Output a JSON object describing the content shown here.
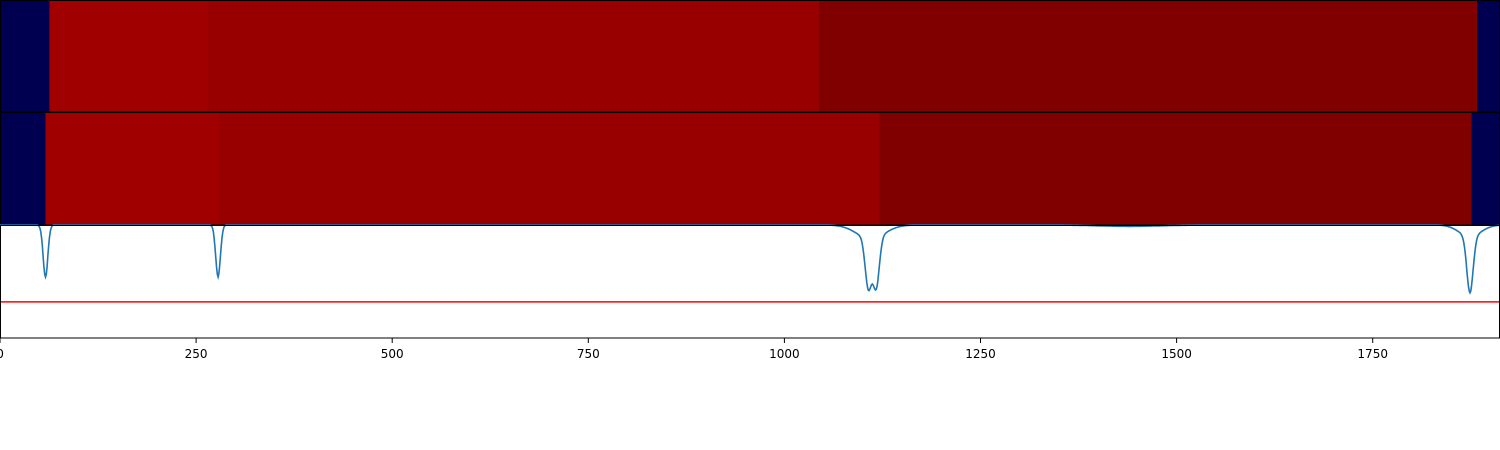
{
  "chart_data": {
    "type": "heatmap",
    "xlim": [
      0,
      1911
    ],
    "xticks": [
      0,
      250,
      500,
      750,
      1000,
      1250,
      1500,
      1750
    ],
    "xtick_labels": [
      "0",
      "250",
      "500",
      "750",
      "1000",
      "1250",
      "1500",
      "1750"
    ],
    "grid": false,
    "legend": "none",
    "segment_rows": [
      {
        "segments": [
          {
            "start": 0,
            "end": 63,
            "color": "#000050"
          },
          {
            "start": 63,
            "end": 265,
            "color": "#a00000"
          },
          {
            "start": 265,
            "end": 1044,
            "color": "#980000"
          },
          {
            "start": 1044,
            "end": 1883,
            "color": "#800000"
          },
          {
            "start": 1883,
            "end": 1911,
            "color": "#000050"
          }
        ]
      },
      {
        "segments": [
          {
            "start": 0,
            "end": 58,
            "color": "#000050"
          },
          {
            "start": 58,
            "end": 279,
            "color": "#a00000"
          },
          {
            "start": 279,
            "end": 1121,
            "color": "#980000"
          },
          {
            "start": 1121,
            "end": 1876,
            "color": "#800000"
          },
          {
            "start": 1876,
            "end": 1911,
            "color": "#000050"
          }
        ]
      }
    ],
    "signal": {
      "color": "#1f77b4",
      "ylim": [
        0,
        1
      ],
      "baseline": 1.0,
      "dips": [
        {
          "center": 58,
          "depth": 0.46,
          "width": 3
        },
        {
          "center": 278,
          "depth": 0.46,
          "width": 3
        },
        {
          "center": 1107,
          "depth": 0.44,
          "width": 4
        },
        {
          "center": 1117,
          "depth": 0.44,
          "width": 4
        },
        {
          "center": 1110,
          "depth": 0.12,
          "width": 18
        },
        {
          "center": 1440,
          "depth": 0.012,
          "width": 40
        },
        {
          "center": 1874,
          "depth": 0.5,
          "width": 4
        },
        {
          "center": 1874,
          "depth": 0.1,
          "width": 14
        }
      ],
      "threshold": 0.32,
      "threshold_color": "#ff0000"
    }
  }
}
